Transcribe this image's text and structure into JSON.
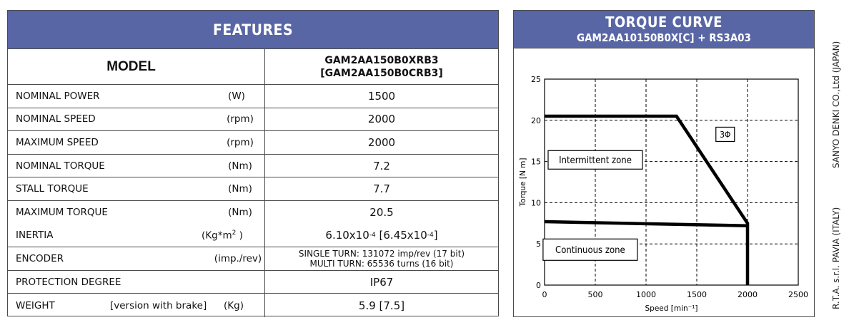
{
  "features": {
    "title": "FEATURES",
    "model": {
      "label": "MODEL",
      "value_line1": "GAM2AA150B0XRB3",
      "value_line2": "[GAM2AA150B0CRB3]"
    },
    "rows": [
      {
        "name": "NOMINAL POWER",
        "unit": "(W)",
        "value": "1500"
      },
      {
        "name": "NOMINAL SPEED",
        "unit": "(rpm)",
        "value": "2000"
      },
      {
        "name": "MAXIMUM SPEED",
        "unit": "(rpm)",
        "value": "2000"
      },
      {
        "name": "NOMINAL TORQUE",
        "unit": "(Nm)",
        "value": "7.2"
      },
      {
        "name": "STALL TORQUE",
        "unit": "(Nm)",
        "value": "7.7"
      },
      {
        "name": "MAXIMUM TORQUE",
        "unit": "(Nm)",
        "value": "20.5"
      }
    ],
    "inertia": {
      "name": "INERTIA",
      "unit": "(Kg*m",
      "unit_sup": "2",
      "unit_end": " )",
      "value_a": "6.10x10",
      "value_a_sup": "-4",
      "value_b": " [6.45x10",
      "value_b_sup": "-4",
      "value_b_end": "]"
    },
    "encoder": {
      "name": "ENCODER",
      "unit": "(imp./rev)",
      "line1": "SINGLE TURN: 131072 imp/rev (17 bit)",
      "line2": "MULTI TURN: 65536 turns (16 bit)"
    },
    "protection": {
      "name": "PROTECTION DEGREE",
      "value": "IP67"
    },
    "weight": {
      "name": "WEIGHT",
      "note": "[version with brake]",
      "unit": "(Kg)",
      "value": "5.9 [7.5]"
    }
  },
  "torque_panel": {
    "title": "TORQUE CURVE",
    "subtitle": "GAM2AA10150B0X[C] + RS3A03",
    "phase_label": "3Φ",
    "intermittent_label": "Intermittent zone",
    "continuous_label": "Continuous zone"
  },
  "chart_data": {
    "type": "line",
    "title": "TORQUE CURVE",
    "xlabel": "Speed [min⁻¹]",
    "ylabel": "Torque [N m]",
    "xlim": [
      0,
      2500
    ],
    "ylim": [
      0,
      25
    ],
    "xticks": [
      "0",
      "500",
      "1000",
      "1500",
      "2000",
      "2500"
    ],
    "yticks": [
      "0",
      "5",
      "10",
      "15",
      "20",
      "25"
    ],
    "grid": true,
    "series": [
      {
        "x": [
          0,
          1300,
          2000,
          2000
        ],
        "y": [
          20.5,
          20.5,
          7.5,
          0
        ]
      },
      {
        "x": [
          0,
          2000
        ],
        "y": [
          7.7,
          7.2
        ]
      }
    ],
    "line_color": "#000000"
  },
  "side_note": {
    "line1": "SANYO DENKI CO.,Ltd (JAPAN)",
    "line2": "R.T.A.  s.r.l. PAVIA (ITALY)"
  },
  "colors": {
    "header_bg": "#5866a6",
    "header_text": "#ffffff"
  }
}
